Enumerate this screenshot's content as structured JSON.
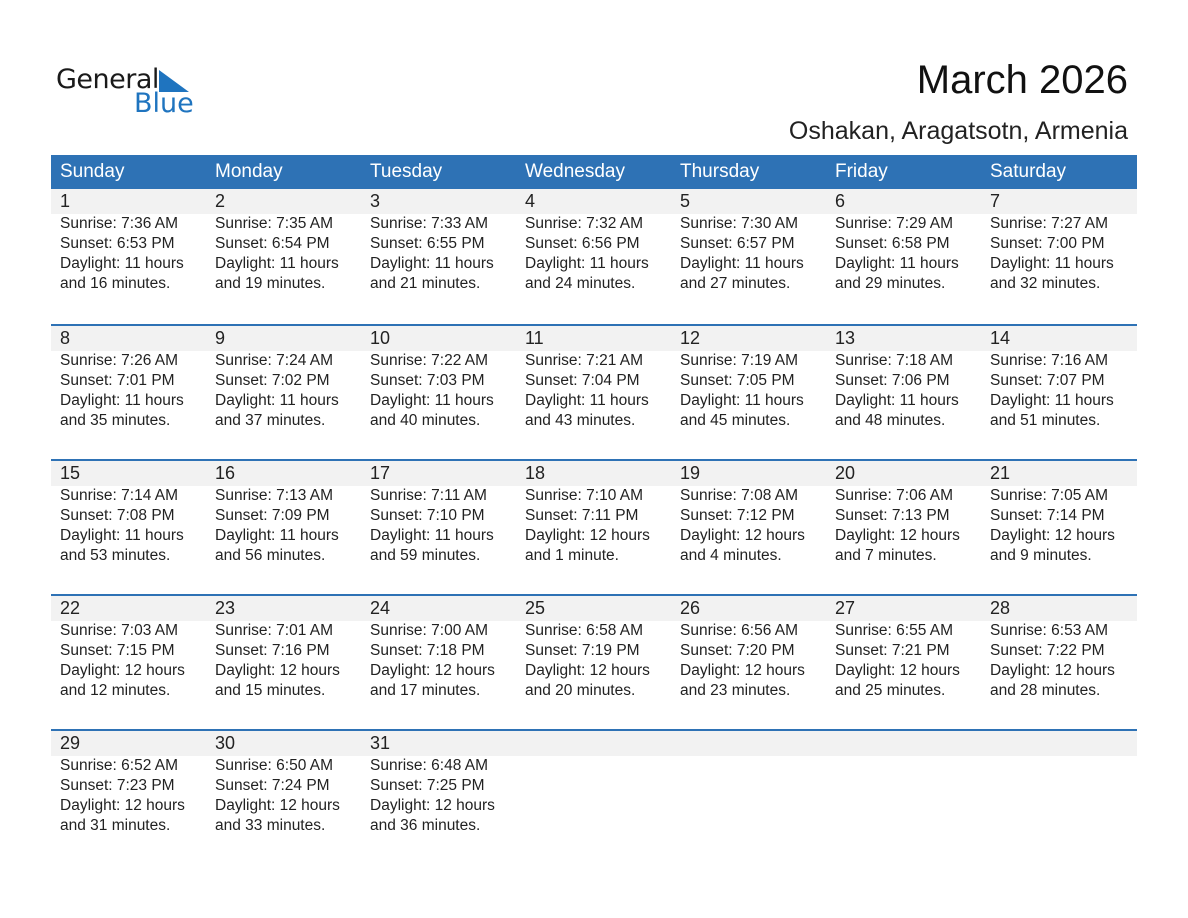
{
  "logo": {
    "general": "General",
    "blue": "Blue"
  },
  "title": "March 2026",
  "subtitle": "Oshakan, Aragatsotn, Armenia",
  "colors": {
    "header": "#2e72b5",
    "band": "#f2f2f2",
    "logo_blue": "#1f74bf"
  },
  "weekdays": [
    "Sunday",
    "Monday",
    "Tuesday",
    "Wednesday",
    "Thursday",
    "Friday",
    "Saturday"
  ],
  "weeks": [
    [
      {
        "day": "1",
        "sunrise": "Sunrise: 7:36 AM",
        "sunset": "Sunset: 6:53 PM",
        "daylight": "Daylight: 11 hours",
        "minutes": "and 16 minutes."
      },
      {
        "day": "2",
        "sunrise": "Sunrise: 7:35 AM",
        "sunset": "Sunset: 6:54 PM",
        "daylight": "Daylight: 11 hours",
        "minutes": "and 19 minutes."
      },
      {
        "day": "3",
        "sunrise": "Sunrise: 7:33 AM",
        "sunset": "Sunset: 6:55 PM",
        "daylight": "Daylight: 11 hours",
        "minutes": "and 21 minutes."
      },
      {
        "day": "4",
        "sunrise": "Sunrise: 7:32 AM",
        "sunset": "Sunset: 6:56 PM",
        "daylight": "Daylight: 11 hours",
        "minutes": "and 24 minutes."
      },
      {
        "day": "5",
        "sunrise": "Sunrise: 7:30 AM",
        "sunset": "Sunset: 6:57 PM",
        "daylight": "Daylight: 11 hours",
        "minutes": "and 27 minutes."
      },
      {
        "day": "6",
        "sunrise": "Sunrise: 7:29 AM",
        "sunset": "Sunset: 6:58 PM",
        "daylight": "Daylight: 11 hours",
        "minutes": "and 29 minutes."
      },
      {
        "day": "7",
        "sunrise": "Sunrise: 7:27 AM",
        "sunset": "Sunset: 7:00 PM",
        "daylight": "Daylight: 11 hours",
        "minutes": "and 32 minutes."
      }
    ],
    [
      {
        "day": "8",
        "sunrise": "Sunrise: 7:26 AM",
        "sunset": "Sunset: 7:01 PM",
        "daylight": "Daylight: 11 hours",
        "minutes": "and 35 minutes."
      },
      {
        "day": "9",
        "sunrise": "Sunrise: 7:24 AM",
        "sunset": "Sunset: 7:02 PM",
        "daylight": "Daylight: 11 hours",
        "minutes": "and 37 minutes."
      },
      {
        "day": "10",
        "sunrise": "Sunrise: 7:22 AM",
        "sunset": "Sunset: 7:03 PM",
        "daylight": "Daylight: 11 hours",
        "minutes": "and 40 minutes."
      },
      {
        "day": "11",
        "sunrise": "Sunrise: 7:21 AM",
        "sunset": "Sunset: 7:04 PM",
        "daylight": "Daylight: 11 hours",
        "minutes": "and 43 minutes."
      },
      {
        "day": "12",
        "sunrise": "Sunrise: 7:19 AM",
        "sunset": "Sunset: 7:05 PM",
        "daylight": "Daylight: 11 hours",
        "minutes": "and 45 minutes."
      },
      {
        "day": "13",
        "sunrise": "Sunrise: 7:18 AM",
        "sunset": "Sunset: 7:06 PM",
        "daylight": "Daylight: 11 hours",
        "minutes": "and 48 minutes."
      },
      {
        "day": "14",
        "sunrise": "Sunrise: 7:16 AM",
        "sunset": "Sunset: 7:07 PM",
        "daylight": "Daylight: 11 hours",
        "minutes": "and 51 minutes."
      }
    ],
    [
      {
        "day": "15",
        "sunrise": "Sunrise: 7:14 AM",
        "sunset": "Sunset: 7:08 PM",
        "daylight": "Daylight: 11 hours",
        "minutes": "and 53 minutes."
      },
      {
        "day": "16",
        "sunrise": "Sunrise: 7:13 AM",
        "sunset": "Sunset: 7:09 PM",
        "daylight": "Daylight: 11 hours",
        "minutes": "and 56 minutes."
      },
      {
        "day": "17",
        "sunrise": "Sunrise: 7:11 AM",
        "sunset": "Sunset: 7:10 PM",
        "daylight": "Daylight: 11 hours",
        "minutes": "and 59 minutes."
      },
      {
        "day": "18",
        "sunrise": "Sunrise: 7:10 AM",
        "sunset": "Sunset: 7:11 PM",
        "daylight": "Daylight: 12 hours",
        "minutes": "and 1 minute."
      },
      {
        "day": "19",
        "sunrise": "Sunrise: 7:08 AM",
        "sunset": "Sunset: 7:12 PM",
        "daylight": "Daylight: 12 hours",
        "minutes": "and 4 minutes."
      },
      {
        "day": "20",
        "sunrise": "Sunrise: 7:06 AM",
        "sunset": "Sunset: 7:13 PM",
        "daylight": "Daylight: 12 hours",
        "minutes": "and 7 minutes."
      },
      {
        "day": "21",
        "sunrise": "Sunrise: 7:05 AM",
        "sunset": "Sunset: 7:14 PM",
        "daylight": "Daylight: 12 hours",
        "minutes": "and 9 minutes."
      }
    ],
    [
      {
        "day": "22",
        "sunrise": "Sunrise: 7:03 AM",
        "sunset": "Sunset: 7:15 PM",
        "daylight": "Daylight: 12 hours",
        "minutes": "and 12 minutes."
      },
      {
        "day": "23",
        "sunrise": "Sunrise: 7:01 AM",
        "sunset": "Sunset: 7:16 PM",
        "daylight": "Daylight: 12 hours",
        "minutes": "and 15 minutes."
      },
      {
        "day": "24",
        "sunrise": "Sunrise: 7:00 AM",
        "sunset": "Sunset: 7:18 PM",
        "daylight": "Daylight: 12 hours",
        "minutes": "and 17 minutes."
      },
      {
        "day": "25",
        "sunrise": "Sunrise: 6:58 AM",
        "sunset": "Sunset: 7:19 PM",
        "daylight": "Daylight: 12 hours",
        "minutes": "and 20 minutes."
      },
      {
        "day": "26",
        "sunrise": "Sunrise: 6:56 AM",
        "sunset": "Sunset: 7:20 PM",
        "daylight": "Daylight: 12 hours",
        "minutes": "and 23 minutes."
      },
      {
        "day": "27",
        "sunrise": "Sunrise: 6:55 AM",
        "sunset": "Sunset: 7:21 PM",
        "daylight": "Daylight: 12 hours",
        "minutes": "and 25 minutes."
      },
      {
        "day": "28",
        "sunrise": "Sunrise: 6:53 AM",
        "sunset": "Sunset: 7:22 PM",
        "daylight": "Daylight: 12 hours",
        "minutes": "and 28 minutes."
      }
    ],
    [
      {
        "day": "29",
        "sunrise": "Sunrise: 6:52 AM",
        "sunset": "Sunset: 7:23 PM",
        "daylight": "Daylight: 12 hours",
        "minutes": "and 31 minutes."
      },
      {
        "day": "30",
        "sunrise": "Sunrise: 6:50 AM",
        "sunset": "Sunset: 7:24 PM",
        "daylight": "Daylight: 12 hours",
        "minutes": "and 33 minutes."
      },
      {
        "day": "31",
        "sunrise": "Sunrise: 6:48 AM",
        "sunset": "Sunset: 7:25 PM",
        "daylight": "Daylight: 12 hours",
        "minutes": "and 36 minutes."
      }
    ]
  ]
}
